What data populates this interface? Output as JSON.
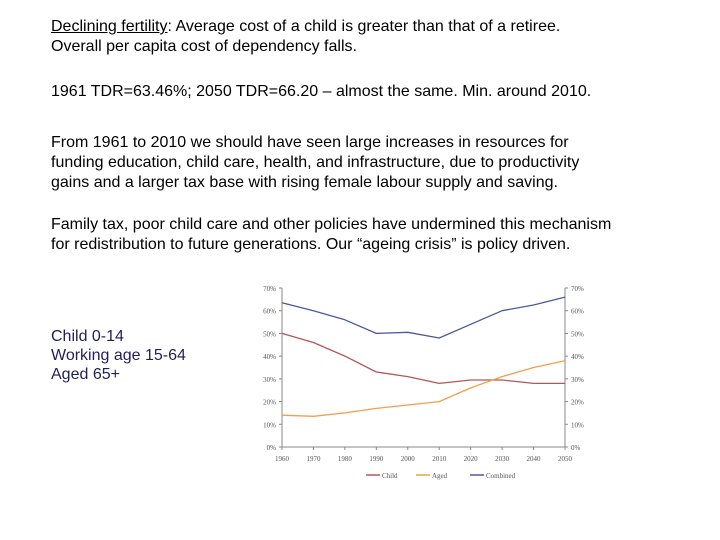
{
  "slide": {
    "p1": {
      "underlined": "Declining fertility",
      "rest": ": Average cost of a child is greater than that of a retiree.",
      "line2": "Overall per capita cost of dependency falls."
    },
    "p2": "1961 TDR=63.46%; 2050 TDR=66.20 – almost the same. Min. around 2010.",
    "p3": [
      "From 1961 to 2010 we should have seen large increases in resources for",
      "funding education, child care, health, and infrastructure, due to productivity",
      "gains and a larger tax base with rising female labour supply and saving."
    ],
    "p4": [
      "Family tax, poor child care and other policies have undermined this mechanism",
      "for redistribution to future generations.  Our “ageing crisis” is policy driven."
    ],
    "side_labels": [
      "Child 0-14",
      "Working age 15-64",
      "Aged 65+"
    ]
  },
  "chart_data": {
    "type": "line",
    "title": "",
    "xlabel": "",
    "ylabel": "",
    "x": [
      1960,
      1970,
      1980,
      1990,
      2000,
      2010,
      2020,
      2030,
      2040,
      2050
    ],
    "x_tick_labels": [
      "1960",
      "1970",
      "1980",
      "1990",
      "2000",
      "2010",
      "2020",
      "2030",
      "2040",
      "2050"
    ],
    "y_tick_labels": [
      "0%",
      "10%",
      "20%",
      "30%",
      "40%",
      "50%",
      "60%",
      "70%"
    ],
    "ylim": [
      0,
      70
    ],
    "grid": false,
    "secondary_axis": true,
    "legend_position": "bottom",
    "series": [
      {
        "name": "Child",
        "color": "#b5565a",
        "values": [
          50,
          46,
          40,
          33,
          31,
          28,
          29.5,
          29.5,
          28,
          28
        ]
      },
      {
        "name": "Aged",
        "color": "#f0a04b",
        "values": [
          14,
          13.5,
          15,
          17,
          18.5,
          20,
          26,
          31,
          35,
          38
        ]
      },
      {
        "name": "Combined",
        "color": "#4a5a9a",
        "values": [
          63.5,
          60,
          56,
          50,
          50.5,
          48,
          54,
          60,
          62.5,
          66
        ]
      }
    ]
  }
}
